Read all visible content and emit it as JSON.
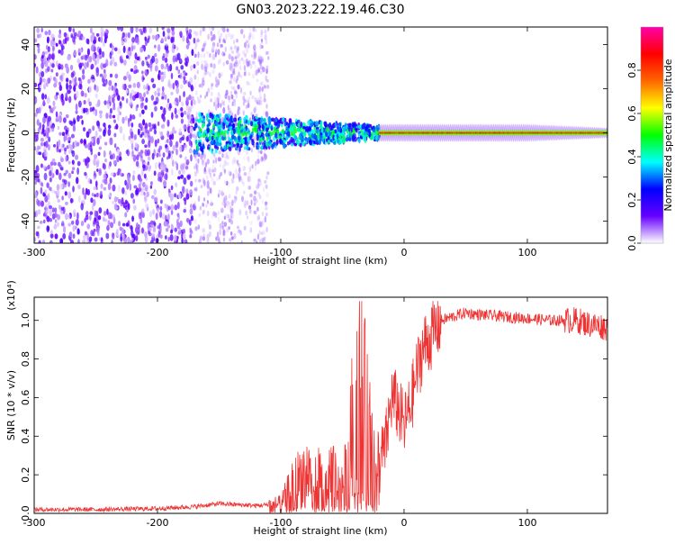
{
  "title": "GN03.2023.222.19.46.C30",
  "colors": {
    "snr_line": "#ee3333",
    "background": "#ffffff",
    "axis": "#000000"
  },
  "chart_data": [
    {
      "type": "heatmap",
      "name": "spectrogram",
      "xlabel": "Height of straight line (km)",
      "ylabel": "Frequency (Hz)",
      "xlim": [
        -300,
        165
      ],
      "ylim": [
        -50,
        48
      ],
      "x_ticks": [
        -300,
        -200,
        -100,
        0,
        100
      ],
      "y_ticks": [
        -40,
        -20,
        0,
        20,
        40
      ],
      "colorbar": {
        "label": "Normalized spectral amplitude",
        "range": [
          0,
          1
        ],
        "ticks": [
          0.0,
          0.2,
          0.4,
          0.6,
          0.8
        ],
        "colormap": [
          "#ffffff",
          "#6600ff",
          "#0000ff",
          "#00ffff",
          "#00ff00",
          "#ffff00",
          "#ff6600",
          "#ff0000",
          "#ff00aa"
        ]
      },
      "regions": [
        {
          "x_range": [
            -300,
            -170
          ],
          "f_range": [
            -50,
            48
          ],
          "amplitude": 0.08,
          "description_level": "broadband noise"
        },
        {
          "x_range": [
            -170,
            -110
          ],
          "f_range": [
            -50,
            48
          ],
          "amplitude": 0.05,
          "description_level": "sparse noise"
        },
        {
          "x_range": [
            -170,
            -20
          ],
          "f_range": [
            -10,
            8
          ],
          "amplitude": 0.35,
          "description_level": "emerging signal"
        },
        {
          "x_range": [
            -20,
            165
          ],
          "f_range": [
            -2,
            2
          ],
          "amplitude": 0.85,
          "description_level": "strong narrow signal"
        }
      ],
      "grid": false,
      "legend": "right"
    },
    {
      "type": "line",
      "name": "snr",
      "xlabel": "Height of straight line (km)",
      "ylabel": "SNR (10 * v/v)",
      "y_multiplier": "(x10⁴)",
      "xlim": [
        -300,
        165
      ],
      "ylim": [
        0,
        1.12
      ],
      "x_ticks": [
        -300,
        -200,
        -100,
        0,
        100
      ],
      "y_ticks": [
        0.0,
        0.2,
        0.4,
        0.6,
        0.8,
        1.0
      ],
      "series": [
        {
          "color": "#ee3333",
          "x": [
            -300,
            -250,
            -200,
            -170,
            -150,
            -120,
            -100,
            -90,
            -80,
            -70,
            -60,
            -50,
            -45,
            -40,
            -35,
            -30,
            -25,
            -20,
            -15,
            -10,
            -5,
            0,
            5,
            10,
            15,
            20,
            25,
            30,
            40,
            50,
            60,
            80,
            100,
            120,
            140,
            150,
            160,
            165
          ],
          "values": [
            0.02,
            0.02,
            0.025,
            0.035,
            0.05,
            0.04,
            0.05,
            0.15,
            0.22,
            0.18,
            0.2,
            0.15,
            0.25,
            0.6,
            0.7,
            0.45,
            0.3,
            0.25,
            0.35,
            0.6,
            0.55,
            0.45,
            0.55,
            0.72,
            0.85,
            0.9,
            0.95,
            1.0,
            1.02,
            1.04,
            1.03,
            1.02,
            1.01,
            1.0,
            1.0,
            0.98,
            0.97,
            0.96
          ]
        }
      ],
      "grid": false
    }
  ]
}
